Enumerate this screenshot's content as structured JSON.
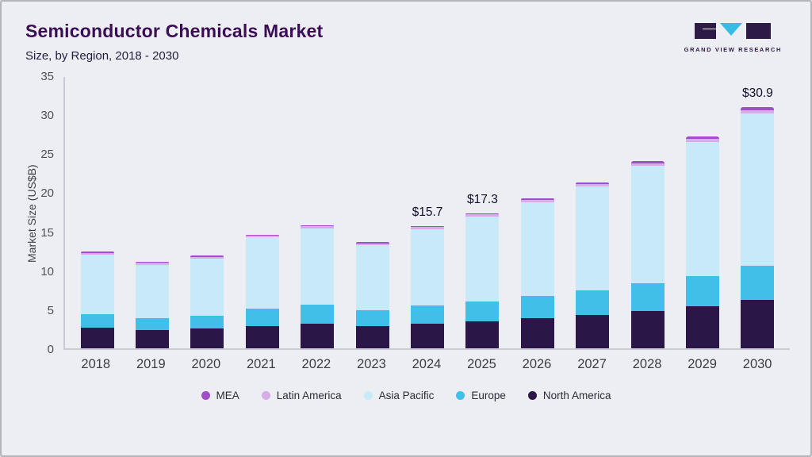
{
  "header": {
    "title": "Semiconductor Chemicals Market",
    "subtitle": "Size, by Region, 2018 - 2030",
    "logo_text": "GRAND VIEW RESEARCH"
  },
  "chart_data": {
    "type": "bar",
    "stacked": true,
    "title": "Semiconductor Chemicals Market Size, by Region, 2018 - 2030",
    "xlabel": "",
    "ylabel": "Market Size (US$B)",
    "ylim": [
      0,
      35
    ],
    "yticks": [
      0,
      5,
      10,
      15,
      20,
      25,
      30,
      35
    ],
    "grid": false,
    "legend_position": "bottom",
    "categories": [
      "2018",
      "2019",
      "2020",
      "2021",
      "2022",
      "2023",
      "2024",
      "2025",
      "2026",
      "2027",
      "2028",
      "2029",
      "2030"
    ],
    "series": [
      {
        "name": "North America",
        "color": "#2b1747",
        "values": [
          2.6,
          2.3,
          2.5,
          2.9,
          3.2,
          2.8,
          3.2,
          3.5,
          3.9,
          4.3,
          4.8,
          5.4,
          6.2
        ]
      },
      {
        "name": "Europe",
        "color": "#41bfe9",
        "values": [
          1.8,
          1.6,
          1.7,
          2.2,
          2.4,
          2.1,
          2.3,
          2.5,
          2.8,
          3.1,
          3.5,
          3.9,
          4.4
        ]
      },
      {
        "name": "Asia Pacific",
        "color": "#c8e9f8",
        "values": [
          7.6,
          6.8,
          7.3,
          9.1,
          9.8,
          8.3,
          9.8,
          10.9,
          12.0,
          13.4,
          15.1,
          17.2,
          19.5
        ]
      },
      {
        "name": "Latin America",
        "color": "#d8abe9",
        "values": [
          0.25,
          0.25,
          0.25,
          0.25,
          0.25,
          0.25,
          0.25,
          0.25,
          0.3,
          0.3,
          0.35,
          0.4,
          0.45
        ]
      },
      {
        "name": "MEA",
        "color": "#a04dc8",
        "values": [
          0.15,
          0.15,
          0.15,
          0.15,
          0.15,
          0.15,
          0.15,
          0.15,
          0.2,
          0.2,
          0.25,
          0.3,
          0.35
        ]
      }
    ],
    "annotations": [
      {
        "category": "2024",
        "text": "$15.7"
      },
      {
        "category": "2025",
        "text": "$17.3"
      },
      {
        "category": "2030",
        "text": "$30.9"
      }
    ],
    "legend": [
      "MEA",
      "Latin America",
      "Asia Pacific",
      "Europe",
      "North America"
    ]
  }
}
